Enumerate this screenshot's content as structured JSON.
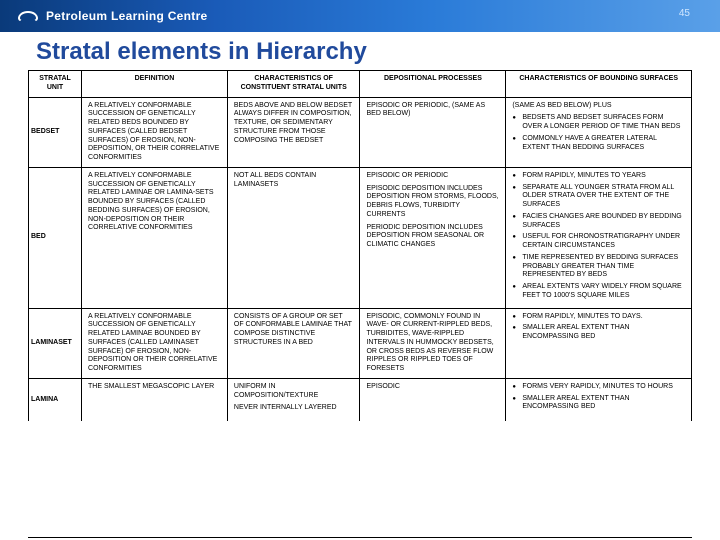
{
  "header": {
    "brand": "Petroleum Learning Centre",
    "slide_number": "45"
  },
  "slide_title": "Stratal elements in Hierarchy",
  "columns": {
    "c1": "Stratal Unit",
    "c2": "Definition",
    "c3": "Characteristics of Constituent Stratal Units",
    "c4": "Depositional Processes",
    "c5": "Characteristics of Bounding Surfaces"
  },
  "rows": {
    "bedset": {
      "unit": "Bedset",
      "definition": "A relatively conformable succession of genetically related beds bounded by surfaces (called bedset surfaces) of erosion, non-deposition, or their correlative conformities",
      "characteristics": "Beds above and below bedset always differ in composition, texture, or sedimentary structure from those composing the bedset",
      "depositional": "Episodic or periodic, (same as bed below)",
      "bounding_intro": "(Same as bed below) plus",
      "bounding": [
        "Bedsets and bedset surfaces form over a longer period of time than beds",
        "Commonly have a greater lateral extent than bedding surfaces"
      ]
    },
    "bed": {
      "unit": "Bed",
      "definition": "A relatively conformable succession of genetically related laminae or lamina-sets bounded by surfaces (called bedding surfaces) of erosion, non-deposition or their correlative conformities",
      "characteristics": "Not all beds contain laminasets",
      "dep1": "Episodic or periodic",
      "dep2": "Episodic deposition includes deposition from storms, floods, debris flows, turbidity currents",
      "dep3": "Periodic deposition includes deposition from seasonal or climatic changes",
      "bounding": [
        "Form rapidly, minutes to years",
        "Separate all younger strata from all older strata over the extent of the surfaces",
        "Facies changes are bounded by bedding surfaces",
        "Useful for chronostratigraphy under certain circumstances",
        "Time represented by bedding surfaces probably greater than time represented by beds",
        "Areal extents vary widely from square feet to 1000's square miles"
      ]
    },
    "laminaset": {
      "unit": "Laminaset",
      "definition": "A relatively conformable succession of genetically related laminae bounded by surfaces (called laminaset surface) of erosion, non-deposition or their correlative conformities",
      "characteristics": "Consists of a group or set of conformable laminae that compose distinctive structures in a bed",
      "depositional": "Episodic, commonly found in wave- or current-rippled beds, turbidites, wave-rippled intervals in hummocky bedsets, or cross beds as reverse flow ripples or rippled toes of foresets",
      "bounding": [
        "Form rapidly, minutes to days.",
        "Smaller areal extent than encompassing bed"
      ]
    },
    "lamina": {
      "unit": "Lamina",
      "definition": "The smallest megascopic layer",
      "char1": "Uniform in composition/texture",
      "char2": "Never internally layered",
      "depositional": "Episodic",
      "bounding": [
        "Forms very rapidly, minutes to hours",
        "Smaller areal extent than encompassing bed"
      ]
    }
  }
}
